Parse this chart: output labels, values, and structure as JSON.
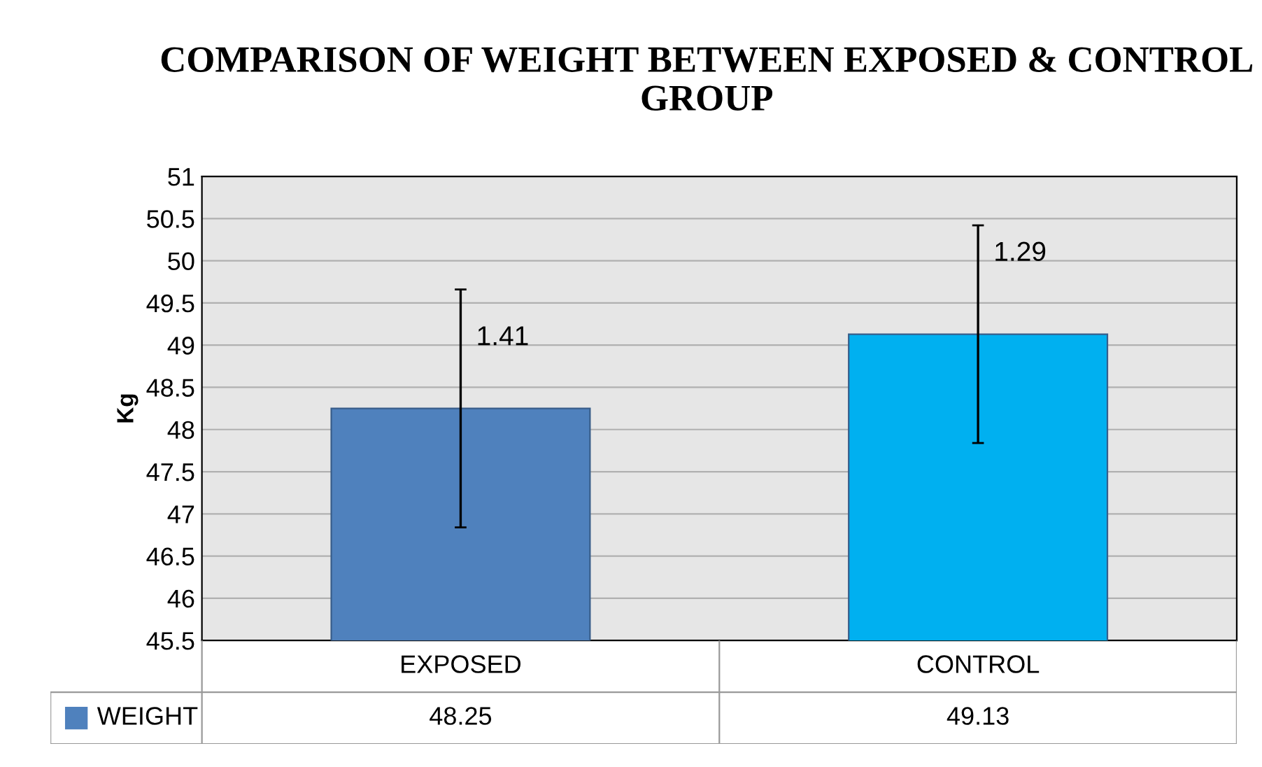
{
  "chart_data": {
    "type": "bar",
    "title": "COMPARISON OF WEIGHT BETWEEN EXPOSED & CONTROL GROUP",
    "ylabel": "Kg",
    "categories": [
      "EXPOSED",
      "CONTROL"
    ],
    "series": [
      {
        "name": "WEIGHT",
        "color": "#4f81bd",
        "colors": [
          "#4f81bd",
          "#00b0f0"
        ],
        "values": [
          48.25,
          49.13
        ],
        "errors": [
          1.41,
          1.29
        ]
      }
    ],
    "annotations": [
      {
        "text": "1.41",
        "x": "EXPOSED",
        "y": 49.0
      },
      {
        "text": "1.29",
        "x": "CONTROL",
        "y": 50.0
      }
    ],
    "ylim": [
      45.5,
      51
    ],
    "yticks": [
      45.5,
      46,
      46.5,
      47,
      47.5,
      48,
      48.5,
      49,
      49.5,
      50,
      50.5,
      51
    ],
    "grid": "y",
    "legend": "bottom",
    "data_labels": true
  }
}
